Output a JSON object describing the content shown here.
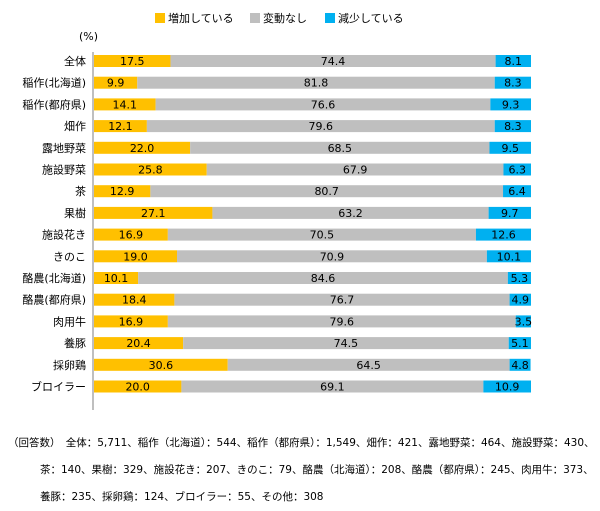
{
  "chart_data": {
    "type": "bar",
    "orientation": "horizontal",
    "stacked": true,
    "percent_label": "(%)",
    "legend_position": "top",
    "grid": false,
    "xlim": [
      0,
      100
    ],
    "categories": [
      "全体",
      "稲作(北海道)",
      "稲作(都府県)",
      "畑作",
      "露地野菜",
      "施設野菜",
      "茶",
      "果樹",
      "施設花き",
      "きのこ",
      "酪農(北海道)",
      "酪農(都府県)",
      "肉用牛",
      "養豚",
      "採卵鶏",
      "ブロイラー"
    ],
    "series": [
      {
        "name": "増加している",
        "color": "#FFC000",
        "values": [
          17.5,
          9.9,
          14.1,
          12.1,
          22.0,
          25.8,
          12.9,
          27.1,
          16.9,
          19.0,
          10.1,
          18.4,
          16.9,
          20.4,
          30.6,
          20.0
        ]
      },
      {
        "name": "変動なし",
        "color": "#BFBFBF",
        "values": [
          74.4,
          81.8,
          76.6,
          79.6,
          68.5,
          67.9,
          80.7,
          63.2,
          70.5,
          70.9,
          84.6,
          76.7,
          79.6,
          74.5,
          64.5,
          69.1
        ]
      },
      {
        "name": "減少している",
        "color": "#00B0F0",
        "values": [
          8.1,
          8.3,
          9.3,
          8.3,
          9.5,
          6.3,
          6.4,
          9.7,
          12.6,
          10.1,
          5.3,
          4.9,
          3.5,
          5.1,
          4.8,
          10.9
        ]
      }
    ]
  },
  "notes": {
    "line1": "（回答数）　全体：5,711、稲作（北海道）：544、稲作（都府県）：1,549、畑作：421、露地野菜：464、施設野菜：430、",
    "line2": "茶：140、果樹：329、施設花き：207、きのこ：79、酪農（北海道）：208、酪農（都府県）：245、肉用牛：373、",
    "line3": "養豚：235、採卵鶏：124、ブロイラー：55、その他：308"
  }
}
